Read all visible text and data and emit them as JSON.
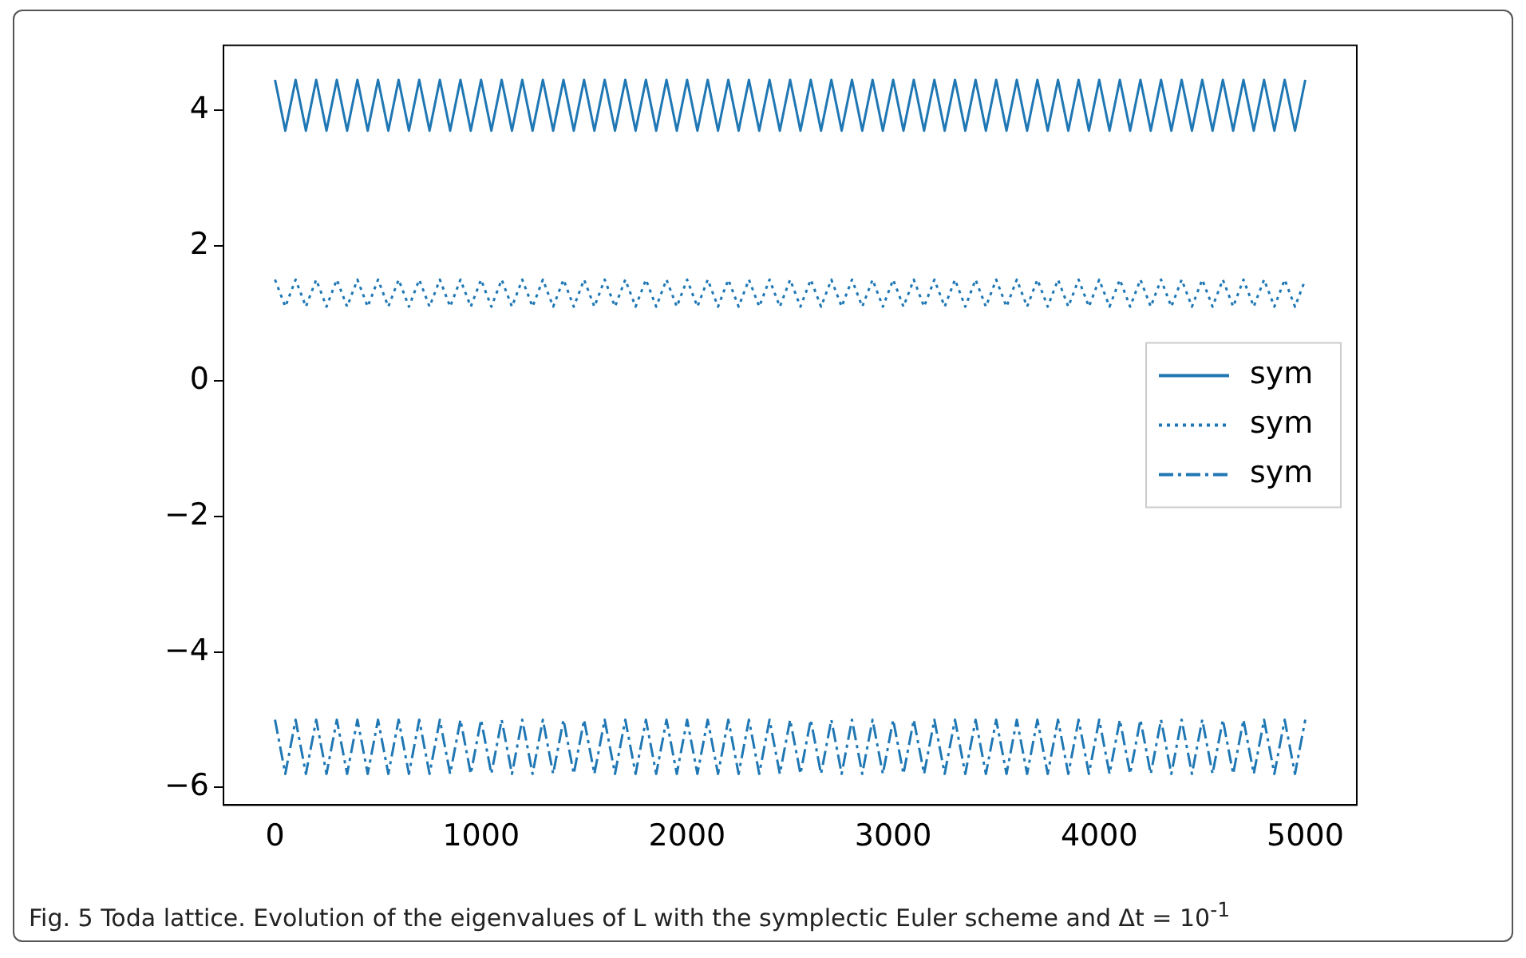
{
  "chart_data": {
    "type": "line",
    "x": [
      0,
      50,
      100,
      150,
      200,
      250,
      300,
      350,
      400,
      450,
      500,
      550,
      600,
      650,
      700,
      750,
      800,
      850,
      900,
      950,
      1000,
      1050,
      1100,
      1150,
      1200,
      1250,
      1300,
      1350,
      1400,
      1450,
      1500,
      1550,
      1600,
      1650,
      1700,
      1750,
      1800,
      1850,
      1900,
      1950,
      2000,
      2050,
      2100,
      2150,
      2200,
      2250,
      2300,
      2350,
      2400,
      2450,
      2500,
      2550,
      2600,
      2650,
      2700,
      2750,
      2800,
      2850,
      2900,
      2950,
      3000,
      3050,
      3100,
      3150,
      3200,
      3250,
      3300,
      3350,
      3400,
      3450,
      3500,
      3550,
      3600,
      3650,
      3700,
      3750,
      3800,
      3850,
      3900,
      3950,
      4000,
      4050,
      4100,
      4150,
      4200,
      4250,
      4300,
      4350,
      4400,
      4450,
      4500,
      4550,
      4600,
      4650,
      4700,
      4750,
      4800,
      4850,
      4900,
      4950,
      5000
    ],
    "series": [
      {
        "name": "sym",
        "color": "#1f77b4",
        "line_style": "solid",
        "values": [
          4.45,
          3.7,
          4.45,
          3.7,
          4.45,
          3.7,
          4.45,
          3.7,
          4.45,
          3.7,
          4.45,
          3.7,
          4.45,
          3.7,
          4.45,
          3.7,
          4.45,
          3.7,
          4.45,
          3.7,
          4.45,
          3.7,
          4.45,
          3.7,
          4.45,
          3.7,
          4.45,
          3.7,
          4.45,
          3.7,
          4.45,
          3.7,
          4.45,
          3.7,
          4.45,
          3.7,
          4.45,
          3.7,
          4.45,
          3.7,
          4.45,
          3.7,
          4.45,
          3.7,
          4.45,
          3.7,
          4.45,
          3.7,
          4.45,
          3.7,
          4.45,
          3.7,
          4.45,
          3.7,
          4.45,
          3.7,
          4.45,
          3.7,
          4.45,
          3.7,
          4.45,
          3.7,
          4.45,
          3.7,
          4.45,
          3.7,
          4.45,
          3.7,
          4.45,
          3.7,
          4.45,
          3.7,
          4.45,
          3.7,
          4.45,
          3.7,
          4.45,
          3.7,
          4.45,
          3.7,
          4.45,
          3.7,
          4.45,
          3.7,
          4.45,
          3.7,
          4.45,
          3.7,
          4.45,
          3.7,
          4.45,
          3.7,
          4.45,
          3.7,
          4.45,
          3.7,
          4.45,
          3.7,
          4.45,
          3.7,
          4.45
        ]
      },
      {
        "name": "sym",
        "color": "#1f77b4",
        "line_style": "dotted",
        "values": [
          1.5,
          1.1,
          1.5,
          1.1,
          1.5,
          1.1,
          1.5,
          1.1,
          1.5,
          1.1,
          1.5,
          1.1,
          1.5,
          1.1,
          1.5,
          1.1,
          1.5,
          1.1,
          1.5,
          1.1,
          1.5,
          1.1,
          1.5,
          1.1,
          1.5,
          1.1,
          1.5,
          1.1,
          1.5,
          1.1,
          1.5,
          1.1,
          1.5,
          1.1,
          1.5,
          1.1,
          1.5,
          1.1,
          1.5,
          1.1,
          1.5,
          1.1,
          1.5,
          1.1,
          1.5,
          1.1,
          1.5,
          1.1,
          1.5,
          1.1,
          1.5,
          1.1,
          1.5,
          1.1,
          1.5,
          1.1,
          1.5,
          1.1,
          1.5,
          1.1,
          1.5,
          1.1,
          1.5,
          1.1,
          1.5,
          1.1,
          1.5,
          1.1,
          1.5,
          1.1,
          1.5,
          1.1,
          1.5,
          1.1,
          1.5,
          1.1,
          1.5,
          1.1,
          1.5,
          1.1,
          1.5,
          1.1,
          1.5,
          1.1,
          1.5,
          1.1,
          1.5,
          1.1,
          1.5,
          1.1,
          1.5,
          1.1,
          1.5,
          1.1,
          1.5,
          1.1,
          1.5,
          1.1,
          1.5,
          1.1,
          1.5
        ]
      },
      {
        "name": "sym",
        "color": "#1f77b4",
        "line_style": "dashdot",
        "values": [
          -5.0,
          -5.8,
          -5.0,
          -5.8,
          -5.0,
          -5.8,
          -5.0,
          -5.8,
          -5.0,
          -5.8,
          -5.0,
          -5.8,
          -5.0,
          -5.8,
          -5.0,
          -5.8,
          -5.0,
          -5.8,
          -5.0,
          -5.8,
          -5.0,
          -5.8,
          -5.0,
          -5.8,
          -5.0,
          -5.8,
          -5.0,
          -5.8,
          -5.0,
          -5.8,
          -5.0,
          -5.8,
          -5.0,
          -5.8,
          -5.0,
          -5.8,
          -5.0,
          -5.8,
          -5.0,
          -5.8,
          -5.0,
          -5.8,
          -5.0,
          -5.8,
          -5.0,
          -5.8,
          -5.0,
          -5.8,
          -5.0,
          -5.8,
          -5.0,
          -5.8,
          -5.0,
          -5.8,
          -5.0,
          -5.8,
          -5.0,
          -5.8,
          -5.0,
          -5.8,
          -5.0,
          -5.8,
          -5.0,
          -5.8,
          -5.0,
          -5.8,
          -5.0,
          -5.8,
          -5.0,
          -5.8,
          -5.0,
          -5.8,
          -5.0,
          -5.8,
          -5.0,
          -5.8,
          -5.0,
          -5.8,
          -5.0,
          -5.8,
          -5.0,
          -5.8,
          -5.0,
          -5.8,
          -5.0,
          -5.8,
          -5.0,
          -5.8,
          -5.0,
          -5.8,
          -5.0,
          -5.8,
          -5.0,
          -5.8,
          -5.0,
          -5.8,
          -5.0,
          -5.8,
          -5.0,
          -5.8,
          -5.0
        ]
      }
    ],
    "xlim": [
      -250,
      5250
    ],
    "xticks": [
      0,
      1000,
      2000,
      3000,
      4000,
      5000
    ],
    "ylim": [
      -6.26,
      4.96
    ],
    "yticks": [
      {
        "value": -6,
        "label": "−6"
      },
      {
        "value": -4,
        "label": "−4"
      },
      {
        "value": -2,
        "label": "−2"
      },
      0,
      2,
      4
    ],
    "grid": false,
    "legend": "right",
    "marker": "none",
    "annotations": [
      "Fig. 5 Toda lattice. Evolution of the eigenvalues of L with the symplectic Euler scheme and Δt = 10$^{-1}$"
    ]
  }
}
